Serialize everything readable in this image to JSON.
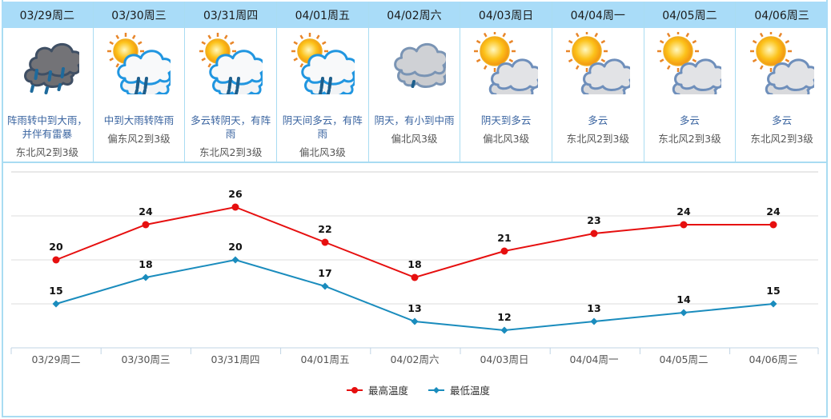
{
  "days": [
    {
      "date": "03/29周二",
      "icon": "thunderstorm-heavy-rain-icon",
      "desc": "阵雨转中到大雨，并伴有雷暴",
      "wind": "东北风2到3级"
    },
    {
      "date": "03/30周三",
      "icon": "sun-cloud-rain-icon",
      "desc": "中到大雨转阵雨",
      "wind": "偏东风2到3级"
    },
    {
      "date": "03/31周四",
      "icon": "sun-cloud-rain-icon",
      "desc": "多云转阴天，有阵雨",
      "wind": "东北风2到3级"
    },
    {
      "date": "04/01周五",
      "icon": "sun-cloud-rain-icon",
      "desc": "阴天间多云，有阵雨",
      "wind": "偏北风3级"
    },
    {
      "date": "04/02周六",
      "icon": "overcast-light-rain-icon",
      "desc": "阴天，有小到中雨",
      "wind": "偏北风3级"
    },
    {
      "date": "04/03周日",
      "icon": "sun-cloudy-icon",
      "desc": "阴天到多云",
      "wind": "偏北风3级"
    },
    {
      "date": "04/04周一",
      "icon": "sun-cloudy-icon",
      "desc": "多云",
      "wind": "东北风2到3级"
    },
    {
      "date": "04/05周二",
      "icon": "sun-cloudy-icon",
      "desc": "多云",
      "wind": "东北风2到3级"
    },
    {
      "date": "04/06周三",
      "icon": "sun-cloudy-icon",
      "desc": "多云",
      "wind": "东北风2到3级"
    }
  ],
  "colors": {
    "high": "#e60f0f",
    "low": "#1a8cbd",
    "header_bg": "#a9dcf8",
    "border": "#a9dcf2",
    "desc_text": "#3a64a0"
  },
  "legend": {
    "high_label": "最高温度",
    "low_label": "最低温度"
  },
  "chart_data": {
    "type": "line",
    "title": "",
    "xlabel": "",
    "ylabel": "",
    "categories": [
      "03/29周二",
      "03/30周三",
      "03/31周四",
      "04/01周五",
      "04/02周六",
      "04/03周日",
      "04/04周一",
      "04/05周二",
      "04/06周三"
    ],
    "series": [
      {
        "name": "最高温度",
        "color": "#e60f0f",
        "marker": "circle",
        "values": [
          20,
          24,
          26,
          22,
          18,
          21,
          23,
          24,
          24
        ]
      },
      {
        "name": "最低温度",
        "color": "#1a8cbd",
        "marker": "diamond",
        "values": [
          15,
          18,
          20,
          17,
          13,
          12,
          13,
          14,
          15
        ]
      }
    ],
    "ylim": [
      10,
      30
    ],
    "y_gridlines": [
      10,
      15,
      20,
      25,
      30
    ],
    "show_y_tick_labels": false,
    "data_labels": true,
    "grid": true,
    "legend_position": "bottom"
  }
}
